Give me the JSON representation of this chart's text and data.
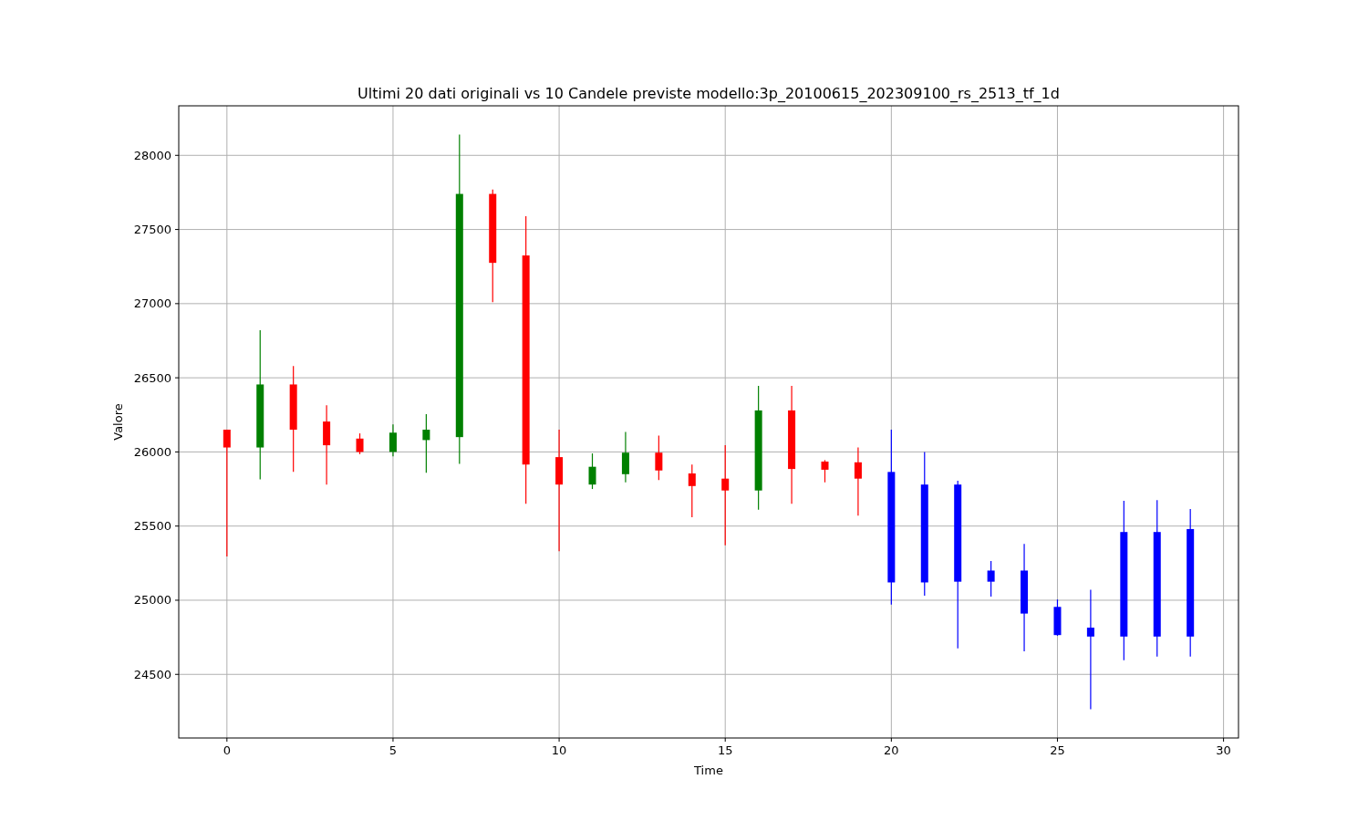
{
  "chart_data": {
    "type": "candlestick",
    "title": "Ultimi 20 dati originali vs 10 Candele previste modello:3p_20100615_202309100_rs_2513_tf_1d",
    "xlabel": "Time",
    "ylabel": "Valore",
    "x": [
      0,
      1,
      2,
      3,
      4,
      5,
      6,
      7,
      8,
      9,
      10,
      11,
      12,
      13,
      14,
      15,
      16,
      17,
      18,
      19,
      20,
      21,
      22,
      23,
      24,
      25,
      26,
      27,
      28,
      29
    ],
    "ohlc": [
      [
        26150,
        26150,
        25295,
        26030
      ],
      [
        26030,
        26820,
        25815,
        26455
      ],
      [
        26455,
        26580,
        25865,
        26150
      ],
      [
        26205,
        26315,
        25780,
        26045
      ],
      [
        26090,
        26125,
        25985,
        26000
      ],
      [
        26000,
        26185,
        25970,
        26130
      ],
      [
        26080,
        26255,
        25860,
        26150
      ],
      [
        26100,
        28140,
        25920,
        27740
      ],
      [
        27740,
        27770,
        27010,
        27275
      ],
      [
        27325,
        27590,
        25650,
        25915
      ],
      [
        25965,
        26150,
        25330,
        25780
      ],
      [
        25780,
        25990,
        25750,
        25900
      ],
      [
        25850,
        26135,
        25795,
        25995
      ],
      [
        25995,
        26110,
        25810,
        25875
      ],
      [
        25855,
        25915,
        25560,
        25770
      ],
      [
        25820,
        26045,
        25370,
        25740
      ],
      [
        25740,
        26445,
        25610,
        26280
      ],
      [
        26280,
        26445,
        25650,
        25885
      ],
      [
        25935,
        25945,
        25795,
        25880
      ],
      [
        25930,
        26030,
        25570,
        25820
      ],
      [
        25865,
        26150,
        24970,
        25120
      ],
      [
        25780,
        26000,
        25030,
        25120
      ],
      [
        25780,
        25805,
        24675,
        25125
      ],
      [
        25200,
        25265,
        25025,
        25125
      ],
      [
        25200,
        25380,
        24655,
        24910
      ],
      [
        24955,
        25005,
        24760,
        24765
      ],
      [
        24815,
        25070,
        24265,
        24755
      ],
      [
        25460,
        25670,
        24595,
        24755
      ],
      [
        25460,
        25675,
        24620,
        24755
      ],
      [
        25480,
        25615,
        24620,
        24755
      ]
    ],
    "colors": [
      "#ff0000",
      "#008000",
      "#ff0000",
      "#ff0000",
      "#ff0000",
      "#008000",
      "#008000",
      "#008000",
      "#ff0000",
      "#ff0000",
      "#ff0000",
      "#008000",
      "#008000",
      "#ff0000",
      "#ff0000",
      "#ff0000",
      "#008000",
      "#ff0000",
      "#ff0000",
      "#ff0000",
      "#0000ff",
      "#0000ff",
      "#0000ff",
      "#0000ff",
      "#0000ff",
      "#0000ff",
      "#0000ff",
      "#0000ff",
      "#0000ff",
      "#0000ff"
    ],
    "xlim": [
      -1.45,
      30.45
    ],
    "ylim": [
      24071,
      28334
    ],
    "xticks": [
      0,
      5,
      10,
      15,
      20,
      25,
      30
    ],
    "yticks": [
      24500,
      25000,
      25500,
      26000,
      26500,
      27000,
      27500,
      28000
    ],
    "grid": true
  }
}
